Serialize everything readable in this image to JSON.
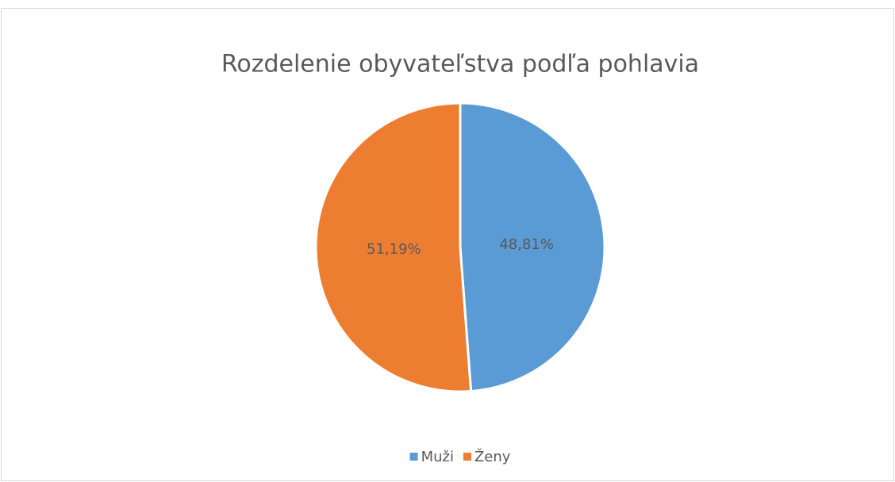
{
  "chart_data": {
    "type": "pie",
    "title": "Rozdelenie obyvateľstva podľa pohlavia",
    "categories": [
      "Muži",
      "Ženy"
    ],
    "values": [
      48.81,
      51.19
    ],
    "value_labels": [
      "48,81%",
      "51,19%"
    ],
    "colors": [
      "#5b9bd5",
      "#ed7d31"
    ],
    "legend": "bottom"
  }
}
